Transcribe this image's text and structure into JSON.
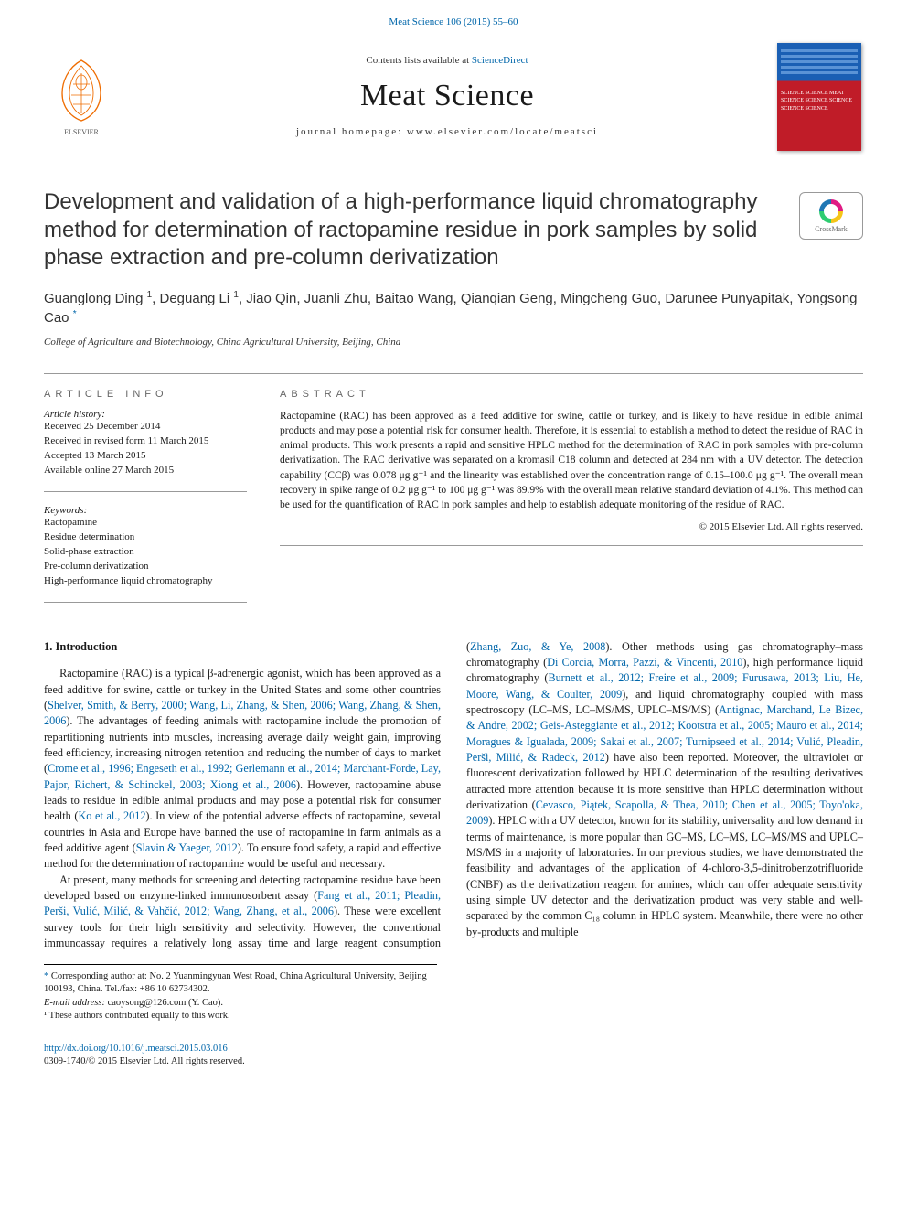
{
  "top_link": {
    "text": "Meat Science 106 (2015) 55–60",
    "color": "#0066aa"
  },
  "masthead": {
    "contents_prefix": "Contents lists available at ",
    "contents_link": "ScienceDirect",
    "journal_name": "Meat Science",
    "homepage_label": "journal homepage: ",
    "homepage_url": "www.elsevier.com/locate/meatsci",
    "cover_lines": "SCIENCE\nSCIENCE\nMEAT SCIENCE\nSCIENCE\nSCIENCE\nSCIENCE\nSCIENCE"
  },
  "crossmark_label": "CrossMark",
  "article": {
    "title": "Development and validation of a high-performance liquid chromatography method for determination of ractopamine residue in pork samples by solid phase extraction and pre-column derivatization",
    "authors_html": "Guanglong Ding <sup>1</sup>, Deguang Li <sup>1</sup>, Jiao Qin, Juanli Zhu, Baitao Wang, Qianqian Geng, Mingcheng Guo, Darunee Punyapitak, Yongsong Cao <sup class=\"ast\">*</sup>",
    "affiliation": "College of Agriculture and Biotechnology, China Agricultural University, Beijing, China"
  },
  "article_info": {
    "heading": "article info",
    "history_label": "Article history:",
    "history": [
      "Received 25 December 2014",
      "Received in revised form 11 March 2015",
      "Accepted 13 March 2015",
      "Available online 27 March 2015"
    ],
    "keywords_label": "Keywords:",
    "keywords": [
      "Ractopamine",
      "Residue determination",
      "Solid-phase extraction",
      "Pre-column derivatization",
      "High-performance liquid chromatography"
    ]
  },
  "abstract": {
    "heading": "abstract",
    "text": "Ractopamine (RAC) has been approved as a feed additive for swine, cattle or turkey, and is likely to have residue in edible animal products and may pose a potential risk for consumer health. Therefore, it is essential to establish a method to detect the residue of RAC in animal products. This work presents a rapid and sensitive HPLC method for the determination of RAC in pork samples with pre-column derivatization. The RAC derivative was separated on a kromasil C18 column and detected at 284 nm with a UV detector. The detection capability (CCβ) was 0.078 μg g⁻¹ and the linearity was established over the concentration range of 0.15–100.0 μg g⁻¹. The overall mean recovery in spike range of 0.2 μg g⁻¹ to 100 μg g⁻¹ was 89.9% with the overall mean relative standard deviation of 4.1%. This method can be used for the quantification of RAC in pork samples and help to establish adequate monitoring of the residue of RAC.",
    "copyright": "© 2015 Elsevier Ltd. All rights reserved."
  },
  "body": {
    "section_heading": "1. Introduction",
    "p1_pre": "Ractopamine (RAC) is a typical β-adrenergic agonist, which has been approved as a feed additive for swine, cattle or turkey in the United States and some other countries (",
    "p1_link1": "Shelver, Smith, & Berry, 2000; Wang, Li, Zhang, & Shen, 2006; Wang, Zhang, & Shen, 2006",
    "p1_mid1": "). The advantages of feeding animals with ractopamine include the promotion of repartitioning nutrients into muscles, increasing average daily weight gain, improving feed efficiency, increasing nitrogen retention and reducing the number of days to market (",
    "p1_link2": "Crome et al., 1996; Engeseth et al., 1992; Gerlemann et al., 2014; Marchant-Forde, Lay, Pajor, Richert, & Schinckel, 2003; Xiong et al., 2006",
    "p1_mid2": "). However, ractopamine abuse leads to residue in edible animal products and may pose a potential risk for consumer health (",
    "p1_link3": "Ko et al., 2012",
    "p1_mid3": "). In view of the potential adverse effects of ractopamine, several countries in Asia and Europe have banned the use of ractopamine in farm animals as a feed additive agent (",
    "p1_link4": "Slavin & Yaeger, 2012",
    "p1_end": "). To ensure food safety, a rapid and effective method for the determination of ractopamine would be useful and necessary.",
    "p2_pre": "At present, many methods for screening and detecting ractopamine residue have been developed based on enzyme-linked immunosorbent assay (",
    "p2_link1": "Fang et al., 2011; Pleadin, Perši, Vulić, Milić, & Vahčić, 2012; Wang, Zhang, et al., 2006",
    "p2_mid1": "). These were excellent survey tools for their high sensitivity and selectivity. However, the conventional immunoassay requires a relatively long assay time and large reagent consumption (",
    "p2_link2": "Zhang, Zuo, & Ye, 2008",
    "p2_mid2": "). Other methods using gas chromatography–mass chromatography (",
    "p2_link3": "Di Corcia, Morra, Pazzi, & Vincenti, 2010",
    "p2_mid3": "), high performance liquid chromatography (",
    "p2_link4": "Burnett et al., 2012; Freire et al., 2009; Furusawa, 2013; Liu, He, Moore, Wang, & Coulter, 2009",
    "p2_mid4": "), and liquid chromatography coupled with mass spectroscopy (LC–MS, LC–MS/MS, UPLC–MS/MS) (",
    "p2_link5": "Antignac, Marchand, Le Bizec, & Andre, 2002; Geis-Asteggiante et al., 2012; Kootstra et al., 2005; Mauro et al., 2014; Moragues & Igualada, 2009; Sakai et al., 2007; Turnipseed et al., 2014; Vulić, Pleadin, Perši, Milić, & Radeck, 2012",
    "p2_mid5": ") have also been reported. Moreover, the ultraviolet or fluorescent derivatization followed by HPLC determination of the resulting derivatives attracted more attention because it is more sensitive than HPLC determination without derivatization (",
    "p2_link6": "Cevasco, Piątek, Scapolla, & Thea, 2010; Chen et al., 2005; Toyo'oka, 2009",
    "p2_end": "). HPLC with a UV detector, known for its stability, universality and low demand in terms of maintenance, is more popular than GC–MS, LC–MS, LC–MS/MS and UPLC–MS/MS in a majority of laboratories. In our previous studies, we have demonstrated the feasibility and advantages of the application of 4-chloro-3,5-dinitrobenzotrifluoride (CNBF) as the derivatization reagent for amines, which can offer adequate sensitivity using simple UV detector and the derivatization product was very stable and well-separated by the common C₁₈ column in HPLC system. Meanwhile, there were no other by-products and multiple"
  },
  "footnotes": {
    "corr_symbol": "*",
    "corr_text": " Corresponding author at: No. 2 Yuanmingyuan West Road, China Agricultural University, Beijing 100193, China. Tel./fax: +86 10 62734302.",
    "email_label": "E-mail address: ",
    "email": "caoysong@126.com",
    "email_tail": " (Y. Cao).",
    "equal": "¹ These authors contributed equally to this work."
  },
  "footer": {
    "doi": "http://dx.doi.org/10.1016/j.meatsci.2015.03.016",
    "issn_line": "0309-1740/© 2015 Elsevier Ltd. All rights reserved."
  },
  "colors": {
    "link": "#0066aa",
    "text": "#1a1a1a",
    "rule": "#999999",
    "heading_grey": "#666666",
    "elsevier_orange": "#ef6c00",
    "cover_blue": "#1a5fb4",
    "cover_red": "#c01c28"
  },
  "typography": {
    "title_fontsize": 24,
    "journal_fontsize": 34,
    "body_fontsize": 12.2,
    "abstract_fontsize": 11.5,
    "meta_fontsize": 11
  }
}
